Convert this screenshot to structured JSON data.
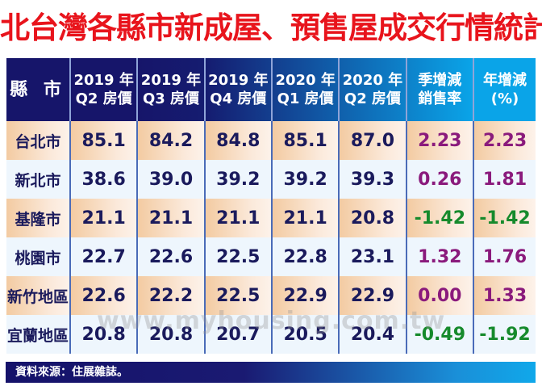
{
  "title": "北台灣各縣市新成屋、預售屋成交行情統計",
  "colors": {
    "title": "#e8141c",
    "header_start": "#16156a",
    "header_end": "#0aa4e8",
    "value": "#1a1a5c",
    "positive": "#8a1a7c",
    "negative": "#168a2c"
  },
  "headers": [
    [
      "縣  市",
      ""
    ],
    [
      "2019 年",
      "Q2 房價"
    ],
    [
      "2019 年",
      "Q3 房價"
    ],
    [
      "2019 年",
      "Q4 房價"
    ],
    [
      "2020 年",
      "Q1 房價"
    ],
    [
      "2020 年",
      "Q2 房價"
    ],
    [
      "季增減",
      "銷售率"
    ],
    [
      "年增減",
      "(%)"
    ]
  ],
  "rows": [
    {
      "city": "台北市",
      "v": [
        "85.1",
        "84.2",
        "84.8",
        "85.1",
        "87.0",
        "2.23",
        "2.23"
      ]
    },
    {
      "city": "新北市",
      "v": [
        "38.6",
        "39.0",
        "39.2",
        "39.2",
        "39.3",
        "0.26",
        "1.81"
      ]
    },
    {
      "city": "基隆市",
      "v": [
        "21.1",
        "21.1",
        "21.1",
        "21.1",
        "20.8",
        "-1.42",
        "-1.42"
      ]
    },
    {
      "city": "桃園市",
      "v": [
        "22.7",
        "22.6",
        "22.5",
        "22.8",
        "23.1",
        "1.32",
        "1.76"
      ]
    },
    {
      "city": "新竹地區",
      "v": [
        "22.6",
        "22.2",
        "22.5",
        "22.9",
        "22.9",
        "0.00",
        "1.33"
      ]
    },
    {
      "city": "宜蘭地區",
      "v": [
        "20.8",
        "20.8",
        "20.7",
        "20.5",
        "20.4",
        "-0.49",
        "-1.92"
      ]
    }
  ],
  "watermark": "www.myhousing.com.tw",
  "footer": "資料來源：住展雜誌。"
}
